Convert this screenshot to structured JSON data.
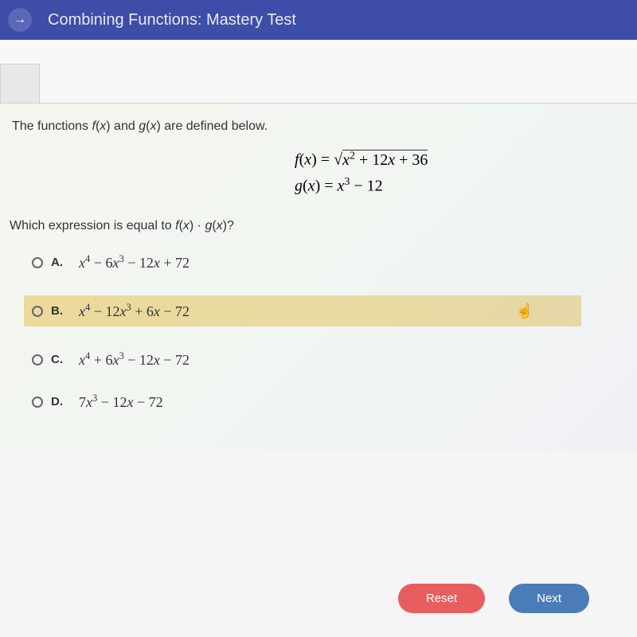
{
  "header": {
    "title": "Combining Functions: Mastery Test",
    "nav_icon": "→"
  },
  "content": {
    "intro_html": "The functions <i>f</i>(<i>x</i>) and <i>g</i>(<i>x</i>) are defined below.",
    "equations": {
      "f_html": "<i>f</i>(<i>x</i>) = √<span class='sqrt'><i>x</i><sup>2</sup> + 12<i>x</i> + 36</span>",
      "g_html": "<i>g</i>(<i>x</i>) = <i>x</i><sup>3</sup> − 12"
    },
    "question_html": "Which expression is equal to <i>f</i>(<i>x</i>) · <i>g</i>(<i>x</i>)?",
    "options": [
      {
        "label": "A.",
        "expr_html": "<i>x</i><sup>4</sup> − 6<i>x</i><sup>3</sup> − 12<i>x</i> + 72",
        "highlighted": false
      },
      {
        "label": "B.",
        "expr_html": "<i>x</i><sup>4</sup> − 12<i>x</i><sup>3</sup> + 6<i>x</i> − 72",
        "highlighted": true
      },
      {
        "label": "C.",
        "expr_html": "<i>x</i><sup>4</sup> + 6<i>x</i><sup>3</sup> − 12<i>x</i> − 72",
        "highlighted": false
      },
      {
        "label": "D.",
        "expr_html": "7<i>x</i><sup>3</sup> − 12<i>x</i> − 72",
        "highlighted": false
      }
    ]
  },
  "buttons": {
    "reset": "Reset",
    "next": "Next"
  },
  "colors": {
    "header_bg": "#3e4da8",
    "highlight_bg": "#e6c864",
    "reset_btn": "#e85d5d",
    "next_btn": "#4a7db8"
  }
}
